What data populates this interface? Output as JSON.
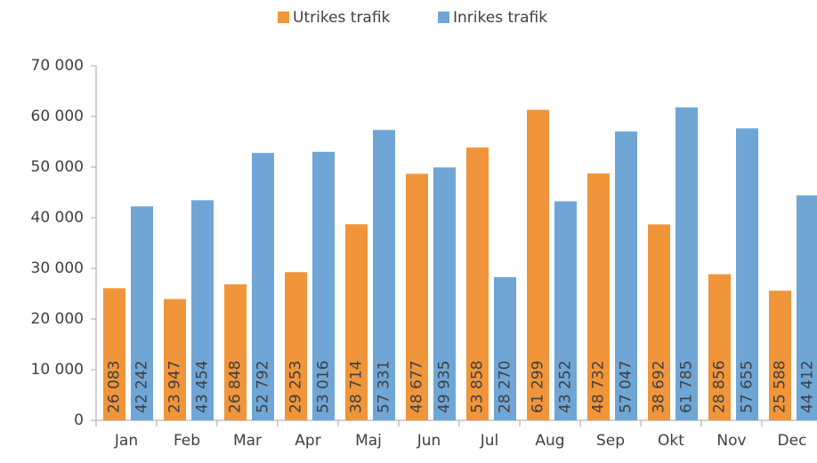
{
  "chart_data": {
    "type": "bar",
    "categories": [
      "Jan",
      "Feb",
      "Mar",
      "Apr",
      "Maj",
      "Jun",
      "Jul",
      "Aug",
      "Sep",
      "Okt",
      "Nov",
      "Dec"
    ],
    "series": [
      {
        "name": "Utrikes trafik",
        "color": "#f0953a",
        "values": [
          26083,
          23947,
          26848,
          29253,
          38714,
          48677,
          53858,
          61299,
          48732,
          38692,
          28856,
          25588
        ],
        "value_labels": [
          "26 083",
          "23 947",
          "26 848",
          "29 253",
          "38 714",
          "48 677",
          "53 858",
          "61 299",
          "48 732",
          "38 692",
          "28 856",
          "25 588"
        ]
      },
      {
        "name": "Inrikes trafik",
        "color": "#6fa6d6",
        "values": [
          42242,
          43454,
          52792,
          53016,
          57331,
          49935,
          28270,
          43252,
          57047,
          61785,
          57655,
          44412
        ],
        "value_labels": [
          "42 242",
          "43 454",
          "52 792",
          "53 016",
          "57 331",
          "49 935",
          "28 270",
          "43 252",
          "57 047",
          "61 785",
          "57 655",
          "44 412"
        ]
      }
    ],
    "ylim": [
      0,
      70000
    ],
    "yticks": [
      0,
      {
        "value": 10000,
        "label": "10 000"
      },
      {
        "value": 20000,
        "label": "20 000"
      },
      {
        "value": 30000,
        "label": "30 000"
      },
      {
        "value": 40000,
        "label": "40 000"
      },
      {
        "value": 50000,
        "label": "50 000"
      },
      {
        "value": 60000,
        "label": "60 000"
      },
      {
        "value": 70000,
        "label": "70 000"
      }
    ],
    "legend": "top"
  }
}
